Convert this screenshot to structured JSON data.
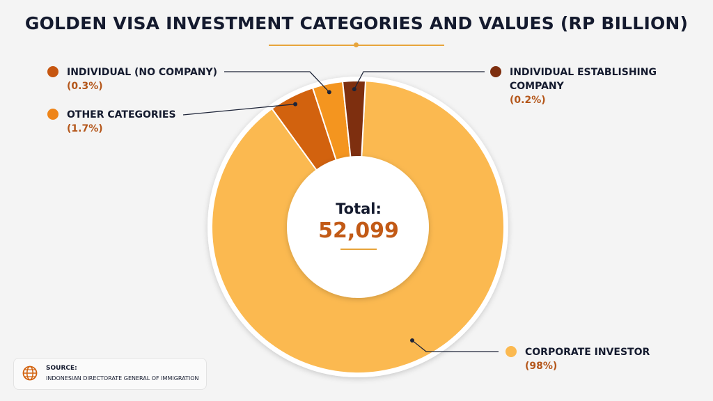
{
  "chart_data": {
    "type": "donut",
    "title": "GOLDEN VISA INVESTMENT CATEGORIES AND VALUES (RP BILLION)",
    "center": {
      "label": "Total:",
      "value": "52,099"
    },
    "series": [
      {
        "name": "CORPORATE INVESTOR",
        "value": 98,
        "value_label": "(98%)",
        "color": "#fbb950"
      },
      {
        "name": "OTHER CATEGORIES",
        "value": 1.7,
        "value_label": "(1.7%)",
        "color": "#d2620e"
      },
      {
        "name": "INDIVIDUAL (NO COMPANY)",
        "value": 0.3,
        "value_label": "(0.3%)",
        "color": "#f4951f"
      },
      {
        "name": "INDIVIDUAL ESTABLISHING COMPANY",
        "value": 0.2,
        "value_label": "(0.2%)",
        "color": "#7e2f0f"
      }
    ]
  },
  "source": {
    "label": "SOURCE:",
    "text": "INDONESIAN DIRECTORATE GENERAL OF IMMIGRATION"
  },
  "labels": {
    "individual_no_company": {
      "line1": "INDIVIDUAL (NO COMPANY)",
      "pct": "(0.3%)"
    },
    "other_categories": {
      "line1": "OTHER CATEGORIES",
      "pct": "(1.7%)"
    },
    "individual_establishing": {
      "line1": "INDIVIDUAL ESTABLISHING",
      "line2": "COMPANY",
      "pct": "(0.2%)"
    },
    "corporate_investor": {
      "line1": "CORPORATE INVESTOR",
      "pct": "(98%)"
    }
  }
}
